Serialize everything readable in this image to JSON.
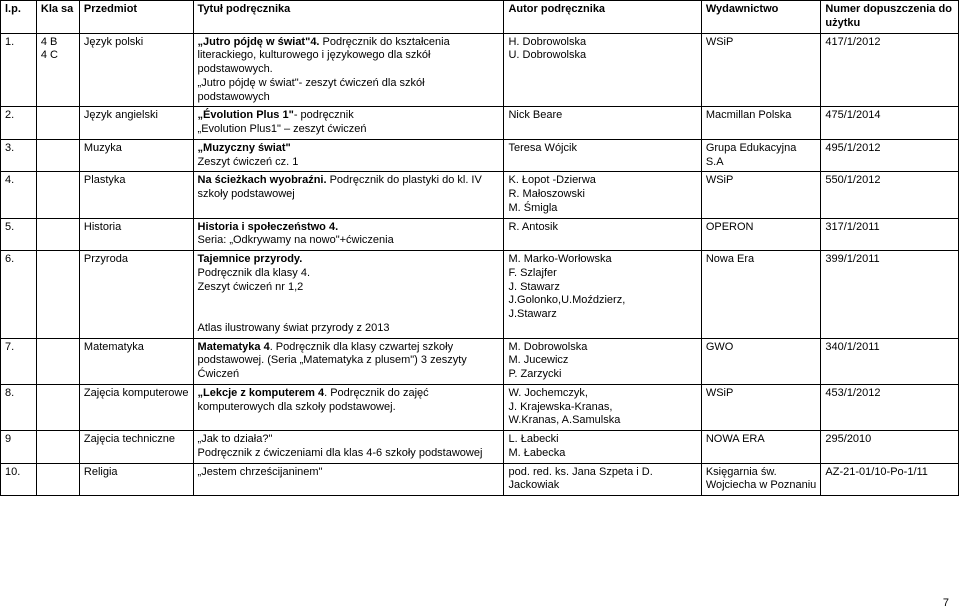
{
  "header": {
    "lp": "l.p.",
    "klasa": "Kla sa",
    "przedmiot": "Przedmiot",
    "tytul": "Tytuł podręcznika",
    "autor": "Autor podręcznika",
    "wydawnictwo": "Wydawnictwo",
    "numer": "Numer dopuszczenia do użytku"
  },
  "rows": [
    {
      "lp": "1.",
      "klasa": "4 B\n4 C",
      "przedmiot": "Język polski",
      "tytul_html": "<span class='bold'>„Jutro pójdę w świat\"4.</span> Podręcznik do kształcenia literackiego, kulturowego i językowego dla szkół podstawowych.\n„Jutro pójdę w świat\"- zeszyt ćwiczeń dla szkół podstawowych",
      "autor": "H. Dobrowolska\nU. Dobrowolska",
      "wyd": "WSiP",
      "numer": "417/1/2012"
    },
    {
      "lp": "2.",
      "klasa": "",
      "przedmiot": "Język  angielski",
      "tytul_html": "<span class='bold'>„Évolution Plus 1\"</span>- podręcznik\n„Evolution Plus1\" – zeszyt ćwiczeń",
      "autor": "Nick Beare",
      "wyd": "Macmillan Polska",
      "numer": "475/1/2014"
    },
    {
      "lp": "3.",
      "klasa": "",
      "przedmiot": "Muzyka",
      "tytul_html": "<span class='bold'>„Muzyczny świat\"</span>\nZeszyt ćwiczeń            cz. 1",
      "autor": "Teresa Wójcik",
      "wyd": "Grupa Edukacyjna S.A",
      "numer": "495/1/2012"
    },
    {
      "lp": "4.",
      "klasa": "",
      "przedmiot": "Plastyka",
      "tytul_html": "<span class='bold'>Na ścieżkach wyobraźni.</span> Podręcznik do plastyki do kl. IV szkoły podstawowej",
      "autor": "K. Łopot -Dzierwa\nR. Małoszowski\nM. Śmigla",
      "wyd": "WSiP",
      "numer": "550/1/2012"
    },
    {
      "lp": "5.",
      "klasa": "",
      "przedmiot": "Historia",
      "tytul_html": "<span class='bold'>Historia i społeczeństwo 4.</span>\nSeria: „Odkrywamy na nowo\"+ćwiczenia",
      "autor": "R. Antosik",
      "wyd": "OPERON",
      "numer": "317/1/2011"
    },
    {
      "lp": "6.",
      "klasa": "",
      "przedmiot": "Przyroda",
      "tytul_html": "<span class='bold'>Tajemnice przyrody.</span>\nPodręcznik dla klasy 4.\nZeszyt ćwiczeń nr 1,2\n\n\nAtlas ilustrowany świat przyrody z 2013",
      "autor": "M. Marko-Worłowska\nF. Szlajfer\nJ. Stawarz\nJ.Golonko,U.Moździerz,\nJ.Stawarz",
      "wyd": " Nowa Era",
      "numer": "399/1/2011"
    },
    {
      "lp": "7.",
      "klasa": "",
      "przedmiot": "Matematyka",
      "tytul_html": "<span class='bold'>Matematyka 4</span>. Podręcznik  dla klasy czwartej szkoły podstawowej. (Seria „Matematyka z plusem\") 3 zeszyty Ćwiczeń",
      "autor": "M. Dobrowolska\nM. Jucewicz\nP. Zarzycki",
      "wyd": "GWO",
      "numer": "340/1/2011"
    },
    {
      "lp": "8.",
      "klasa": "",
      "przedmiot": "Zajęcia komputerowe",
      "tytul_html": "<span class='bold'>„Lekcje z komputerem 4</span>. Podręcznik do zajęć komputerowych dla szkoły podstawowej.",
      "autor": "W. Jochemczyk,\nJ. Krajewska-Kranas,\nW.Kranas, A.Samulska",
      "wyd": "WSiP",
      "numer": "453/1/2012"
    },
    {
      "lp": "9",
      "klasa": "",
      "przedmiot": "Zajęcia techniczne",
      "tytul_html": "„Jak to działa?\"\nPodręcznik z ćwiczeniami dla klas 4-6 szkoły podstawowej",
      "autor": "L. Łabecki\nM. Łabecka",
      "wyd": "NOWA ERA",
      "numer": "295/2010"
    },
    {
      "lp": "10.",
      "klasa": "",
      "przedmiot": "Religia",
      "tytul_html": "„Jestem chrześcijaninem\"",
      "autor": "pod. red. ks. Jana Szpeta i D. Jackowiak",
      "wyd": "Księgarnia św. Wojciecha w Poznaniu",
      "numer": "AZ-21-01/10-Po-1/11"
    }
  ],
  "pageNumber": "7"
}
